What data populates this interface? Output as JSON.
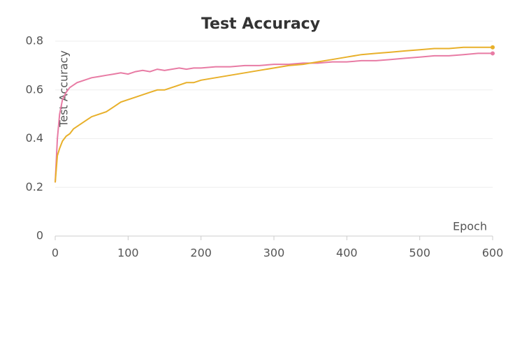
{
  "chart_data": {
    "type": "line",
    "title": "Test Accuracy",
    "x_label": "Epoch",
    "y_label": "Test Accuracy",
    "x": [
      0,
      3,
      6,
      10,
      15,
      20,
      25,
      30,
      40,
      50,
      60,
      70,
      80,
      90,
      100,
      110,
      120,
      130,
      140,
      150,
      160,
      170,
      180,
      190,
      200,
      220,
      240,
      260,
      280,
      300,
      320,
      340,
      360,
      380,
      400,
      420,
      440,
      460,
      480,
      500,
      520,
      540,
      560,
      580,
      600
    ],
    "series": [
      {
        "color": "#e87ba4",
        "values": [
          0.22,
          0.4,
          0.5,
          0.56,
          0.59,
          0.61,
          0.62,
          0.63,
          0.64,
          0.65,
          0.655,
          0.66,
          0.665,
          0.67,
          0.665,
          0.675,
          0.68,
          0.675,
          0.685,
          0.68,
          0.685,
          0.69,
          0.685,
          0.69,
          0.69,
          0.695,
          0.695,
          0.7,
          0.7,
          0.705,
          0.705,
          0.71,
          0.71,
          0.715,
          0.715,
          0.72,
          0.72,
          0.725,
          0.73,
          0.735,
          0.74,
          0.74,
          0.745,
          0.75,
          0.75
        ]
      },
      {
        "color": "#e8b02a",
        "values": [
          0.22,
          0.33,
          0.36,
          0.39,
          0.41,
          0.42,
          0.44,
          0.45,
          0.47,
          0.49,
          0.5,
          0.51,
          0.53,
          0.55,
          0.56,
          0.57,
          0.58,
          0.59,
          0.6,
          0.6,
          0.61,
          0.62,
          0.63,
          0.63,
          0.64,
          0.65,
          0.66,
          0.67,
          0.68,
          0.69,
          0.7,
          0.705,
          0.715,
          0.725,
          0.735,
          0.745,
          0.75,
          0.755,
          0.76,
          0.765,
          0.77,
          0.77,
          0.775,
          0.775,
          0.775
        ]
      }
    ],
    "xlim": [
      0,
      600
    ],
    "xticks": [
      0,
      100,
      200,
      300,
      400,
      500,
      600
    ],
    "ylim": [
      0,
      0.8
    ],
    "yticks": [
      0,
      0.2,
      0.4,
      0.6,
      0.8
    ],
    "grid": true
  }
}
